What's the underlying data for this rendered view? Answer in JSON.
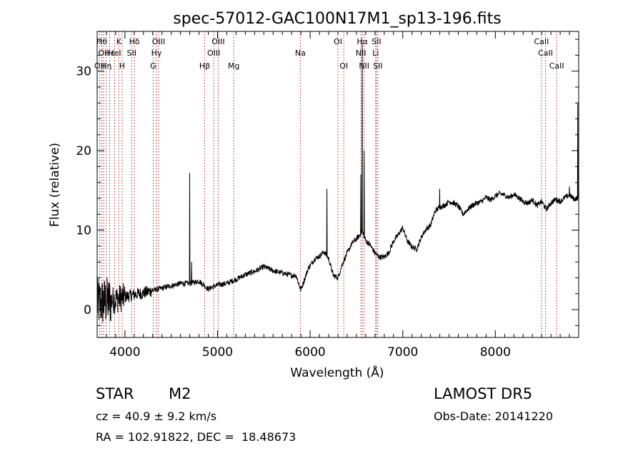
{
  "chart_data": {
    "type": "line",
    "title": "spec-57012-GAC100N17M1_sp13-196.fits",
    "xlabel": "Wavelength (Å)",
    "ylabel": "Flux (relative)",
    "xlim": [
      3700,
      8900
    ],
    "ylim": [
      -3.5,
      35
    ],
    "x_ticks": [
      4000,
      5000,
      6000,
      7000,
      8000
    ],
    "y_ticks": [
      0,
      10,
      20,
      30
    ],
    "grid": false,
    "line_color": "#000000",
    "marker_color": "#b22222",
    "line_markers": [
      {
        "wavelength": 3727,
        "labels": [
          "OII"
        ],
        "row": 3
      },
      {
        "wavelength": 3750,
        "labels": [
          "Hθ"
        ],
        "row": 1
      },
      {
        "wavelength": 3770,
        "labels": [
          "OII"
        ],
        "row": 2
      },
      {
        "wavelength": 3798,
        "labels": [
          "Hη"
        ],
        "row": 3
      },
      {
        "wavelength": 3835,
        "labels": [
          "Hε"
        ],
        "row": 2
      },
      {
        "wavelength": 3889,
        "labels": [
          "HeI"
        ],
        "row": 2
      },
      {
        "wavelength": 3934,
        "labels": [
          "K"
        ],
        "row": 1
      },
      {
        "wavelength": 3969,
        "labels": [
          "H"
        ],
        "row": 3
      },
      {
        "wavelength": 4072,
        "labels": [
          "SII"
        ],
        "row": 2
      },
      {
        "wavelength": 4102,
        "labels": [
          "Hδ"
        ],
        "row": 1
      },
      {
        "wavelength": 4305,
        "labels": [
          "G"
        ],
        "row": 3
      },
      {
        "wavelength": 4340,
        "labels": [
          "Hγ"
        ],
        "row": 2
      },
      {
        "wavelength": 4363,
        "labels": [
          "OIII"
        ],
        "row": 1
      },
      {
        "wavelength": 4861,
        "labels": [
          "Hβ"
        ],
        "row": 3
      },
      {
        "wavelength": 4959,
        "labels": [
          "OIII"
        ],
        "row": 2
      },
      {
        "wavelength": 5007,
        "labels": [
          "OIII"
        ],
        "row": 1
      },
      {
        "wavelength": 5175,
        "labels": [
          "Mg"
        ],
        "row": 3
      },
      {
        "wavelength": 5894,
        "labels": [
          "Na"
        ],
        "row": 2
      },
      {
        "wavelength": 6300,
        "labels": [
          "OI"
        ],
        "row": 1
      },
      {
        "wavelength": 6363,
        "labels": [
          "OI"
        ],
        "row": 3
      },
      {
        "wavelength": 6548,
        "labels": [
          "NII"
        ],
        "row": 2
      },
      {
        "wavelength": 6563,
        "labels": [
          "Hα"
        ],
        "row": 1
      },
      {
        "wavelength": 6583,
        "labels": [
          "NII"
        ],
        "row": 3
      },
      {
        "wavelength": 6707,
        "labels": [
          "Li"
        ],
        "row": 2
      },
      {
        "wavelength": 6716,
        "labels": [
          "SII"
        ],
        "row": 1
      },
      {
        "wavelength": 6731,
        "labels": [
          "SII"
        ],
        "row": 3
      },
      {
        "wavelength": 8498,
        "labels": [
          "CaII"
        ],
        "row": 1
      },
      {
        "wavelength": 8542,
        "labels": [
          "CaII"
        ],
        "row": 2
      },
      {
        "wavelength": 8662,
        "labels": [
          "CaII"
        ],
        "row": 3
      }
    ],
    "continuum": [
      [
        3700,
        0.8
      ],
      [
        3800,
        1.0
      ],
      [
        3900,
        1.3
      ],
      [
        4000,
        1.6
      ],
      [
        4100,
        1.9
      ],
      [
        4200,
        2.1
      ],
      [
        4300,
        2.4
      ],
      [
        4400,
        2.7
      ],
      [
        4500,
        3.0
      ],
      [
        4600,
        3.3
      ],
      [
        4700,
        3.3
      ],
      [
        4800,
        3.6
      ],
      [
        4850,
        3.1
      ],
      [
        4900,
        2.6
      ],
      [
        5000,
        3.1
      ],
      [
        5100,
        3.3
      ],
      [
        5200,
        3.8
      ],
      [
        5300,
        4.4
      ],
      [
        5400,
        4.8
      ],
      [
        5500,
        5.4
      ],
      [
        5600,
        4.9
      ],
      [
        5700,
        4.6
      ],
      [
        5800,
        4.3
      ],
      [
        5850,
        4.3
      ],
      [
        5880,
        3.1
      ],
      [
        5900,
        2.5
      ],
      [
        5930,
        3.5
      ],
      [
        5980,
        5.2
      ],
      [
        6050,
        6.4
      ],
      [
        6100,
        6.7
      ],
      [
        6150,
        7.3
      ],
      [
        6200,
        6.4
      ],
      [
        6250,
        4.3
      ],
      [
        6300,
        4.0
      ],
      [
        6350,
        5.8
      ],
      [
        6400,
        7.1
      ],
      [
        6450,
        8.3
      ],
      [
        6500,
        8.9
      ],
      [
        6540,
        9.4
      ],
      [
        6560,
        9.9
      ],
      [
        6600,
        8.7
      ],
      [
        6650,
        8.1
      ],
      [
        6700,
        7.1
      ],
      [
        6750,
        6.6
      ],
      [
        6800,
        6.6
      ],
      [
        6850,
        7.2
      ],
      [
        6900,
        8.6
      ],
      [
        6950,
        9.4
      ],
      [
        7000,
        10.3
      ],
      [
        7050,
        8.6
      ],
      [
        7100,
        7.9
      ],
      [
        7150,
        7.6
      ],
      [
        7200,
        9.1
      ],
      [
        7250,
        10.1
      ],
      [
        7300,
        10.6
      ],
      [
        7350,
        12.4
      ],
      [
        7400,
        12.9
      ],
      [
        7450,
        13.1
      ],
      [
        7500,
        13.6
      ],
      [
        7550,
        13.4
      ],
      [
        7600,
        13.0
      ],
      [
        7650,
        12.0
      ],
      [
        7700,
        12.6
      ],
      [
        7750,
        13.1
      ],
      [
        7800,
        13.4
      ],
      [
        7850,
        13.6
      ],
      [
        7900,
        14.1
      ],
      [
        7950,
        13.8
      ],
      [
        8000,
        14.3
      ],
      [
        8050,
        14.6
      ],
      [
        8100,
        14.4
      ],
      [
        8150,
        14.1
      ],
      [
        8200,
        14.5
      ],
      [
        8250,
        14.1
      ],
      [
        8300,
        13.6
      ],
      [
        8350,
        13.4
      ],
      [
        8400,
        13.8
      ],
      [
        8450,
        13.1
      ],
      [
        8500,
        13.6
      ],
      [
        8550,
        12.6
      ],
      [
        8600,
        13.4
      ],
      [
        8650,
        13.9
      ],
      [
        8700,
        13.6
      ],
      [
        8750,
        14.1
      ],
      [
        8800,
        14.4
      ],
      [
        8850,
        13.9
      ],
      [
        8900,
        14.1
      ]
    ],
    "spikes": [
      [
        4700,
        17.2
      ],
      [
        4720,
        6.0
      ],
      [
        6180,
        15.2
      ],
      [
        6548,
        17.0
      ],
      [
        6563,
        33.5
      ],
      [
        6583,
        20.0
      ],
      [
        7400,
        15.2
      ],
      [
        8800,
        15.5
      ],
      [
        8890,
        26.0
      ]
    ]
  },
  "info": {
    "object_class": "STAR",
    "subclass": "M2",
    "survey": "LAMOST DR5",
    "redshift": "cz = 40.9 ± 9.2 km/s",
    "obs_date": "Obs-Date: 20141220",
    "coords": "RA = 102.91822, DEC =  18.48673"
  }
}
